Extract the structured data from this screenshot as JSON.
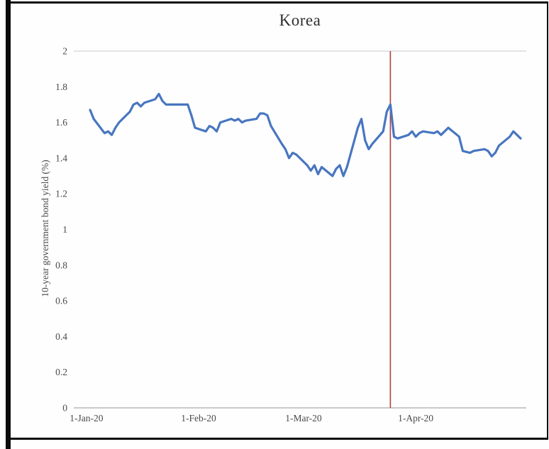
{
  "chart_data": {
    "type": "line",
    "title": "Korea",
    "xlabel": "",
    "ylabel": "10-year government bond yield (%)",
    "ylim": [
      0,
      2
    ],
    "legend": "none",
    "grid": "top-border-only",
    "text_color": "#4a4a4a",
    "axis_color": "#ababab",
    "gridline_color": "#c9c9c9",
    "yticks": [
      {
        "value": 0,
        "label": "0"
      },
      {
        "value": 0.2,
        "label": "0.2"
      },
      {
        "value": 0.4,
        "label": "0.4"
      },
      {
        "value": 0.6,
        "label": "0.6"
      },
      {
        "value": 0.8,
        "label": "0.8"
      },
      {
        "value": 1,
        "label": "1"
      },
      {
        "value": 1.2,
        "label": "1.2"
      },
      {
        "value": 1.4,
        "label": "1.4"
      },
      {
        "value": 1.6,
        "label": "1.6"
      },
      {
        "value": 1.8,
        "label": "1.8"
      },
      {
        "value": 2,
        "label": "2"
      }
    ],
    "xticks": [
      {
        "date": "2020-01-01",
        "label": "1-Jan-20"
      },
      {
        "date": "2020-02-01",
        "label": "1-Feb-20"
      },
      {
        "date": "2020-03-01",
        "label": "1-Mar-20"
      },
      {
        "date": "2020-04-01",
        "label": "1-Apr-20"
      }
    ],
    "marker_line": {
      "date": "2020-03-25",
      "color": "#b2423c"
    },
    "series": [
      {
        "name": "10-year government bond yield (%)",
        "color": "#4876c0",
        "points": [
          [
            "2020-01-02",
            1.67
          ],
          [
            "2020-01-03",
            1.62
          ],
          [
            "2020-01-06",
            1.54
          ],
          [
            "2020-01-07",
            1.55
          ],
          [
            "2020-01-08",
            1.53
          ],
          [
            "2020-01-09",
            1.57
          ],
          [
            "2020-01-10",
            1.6
          ],
          [
            "2020-01-13",
            1.66
          ],
          [
            "2020-01-14",
            1.7
          ],
          [
            "2020-01-15",
            1.71
          ],
          [
            "2020-01-16",
            1.69
          ],
          [
            "2020-01-17",
            1.71
          ],
          [
            "2020-01-20",
            1.73
          ],
          [
            "2020-01-21",
            1.76
          ],
          [
            "2020-01-22",
            1.72
          ],
          [
            "2020-01-23",
            1.7
          ],
          [
            "2020-01-28",
            1.7
          ],
          [
            "2020-01-29",
            1.7
          ],
          [
            "2020-01-30",
            1.64
          ],
          [
            "2020-01-31",
            1.57
          ],
          [
            "2020-02-03",
            1.55
          ],
          [
            "2020-02-04",
            1.58
          ],
          [
            "2020-02-05",
            1.57
          ],
          [
            "2020-02-06",
            1.55
          ],
          [
            "2020-02-07",
            1.6
          ],
          [
            "2020-02-10",
            1.62
          ],
          [
            "2020-02-11",
            1.61
          ],
          [
            "2020-02-12",
            1.62
          ],
          [
            "2020-02-13",
            1.6
          ],
          [
            "2020-02-14",
            1.61
          ],
          [
            "2020-02-17",
            1.62
          ],
          [
            "2020-02-18",
            1.65
          ],
          [
            "2020-02-19",
            1.65
          ],
          [
            "2020-02-20",
            1.64
          ],
          [
            "2020-02-21",
            1.58
          ],
          [
            "2020-02-24",
            1.48
          ],
          [
            "2020-02-25",
            1.45
          ],
          [
            "2020-02-26",
            1.4
          ],
          [
            "2020-02-27",
            1.43
          ],
          [
            "2020-02-28",
            1.42
          ],
          [
            "2020-03-02",
            1.36
          ],
          [
            "2020-03-03",
            1.33
          ],
          [
            "2020-03-04",
            1.36
          ],
          [
            "2020-03-05",
            1.31
          ],
          [
            "2020-03-06",
            1.35
          ],
          [
            "2020-03-09",
            1.3
          ],
          [
            "2020-03-10",
            1.34
          ],
          [
            "2020-03-11",
            1.36
          ],
          [
            "2020-03-12",
            1.3
          ],
          [
            "2020-03-13",
            1.35
          ],
          [
            "2020-03-16",
            1.57
          ],
          [
            "2020-03-17",
            1.62
          ],
          [
            "2020-03-18",
            1.5
          ],
          [
            "2020-03-19",
            1.45
          ],
          [
            "2020-03-20",
            1.48
          ],
          [
            "2020-03-23",
            1.55
          ],
          [
            "2020-03-24",
            1.66
          ],
          [
            "2020-03-25",
            1.7
          ],
          [
            "2020-03-26",
            1.52
          ],
          [
            "2020-03-27",
            1.51
          ],
          [
            "2020-03-30",
            1.53
          ],
          [
            "2020-03-31",
            1.55
          ],
          [
            "2020-04-01",
            1.52
          ],
          [
            "2020-04-02",
            1.54
          ],
          [
            "2020-04-03",
            1.55
          ],
          [
            "2020-04-06",
            1.54
          ],
          [
            "2020-04-07",
            1.55
          ],
          [
            "2020-04-08",
            1.53
          ],
          [
            "2020-04-09",
            1.55
          ],
          [
            "2020-04-10",
            1.57
          ],
          [
            "2020-04-13",
            1.52
          ],
          [
            "2020-04-14",
            1.44
          ],
          [
            "2020-04-16",
            1.43
          ],
          [
            "2020-04-17",
            1.44
          ],
          [
            "2020-04-20",
            1.45
          ],
          [
            "2020-04-21",
            1.44
          ],
          [
            "2020-04-22",
            1.41
          ],
          [
            "2020-04-23",
            1.43
          ],
          [
            "2020-04-24",
            1.47
          ],
          [
            "2020-04-27",
            1.52
          ],
          [
            "2020-04-28",
            1.55
          ],
          [
            "2020-04-29",
            1.53
          ],
          [
            "2020-04-30",
            1.51
          ]
        ]
      }
    ]
  }
}
